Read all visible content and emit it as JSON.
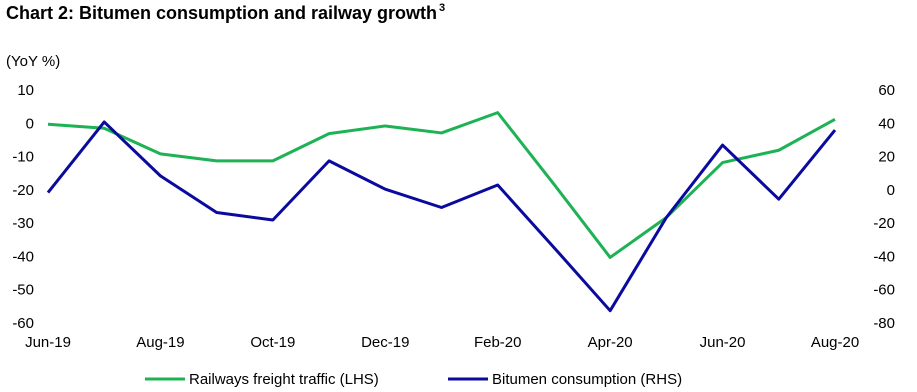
{
  "chart_data": {
    "type": "line",
    "title": "Chart 2: Bitumen consumption and railway growth",
    "title_superscript": "3",
    "y_label": "(YoY %)",
    "categories": [
      "Jun-19",
      null,
      "Aug-19",
      null,
      "Oct-19",
      null,
      "Dec-19",
      null,
      "Feb-20",
      null,
      "Apr-20",
      null,
      "Jun-20",
      null,
      "Aug-20"
    ],
    "series": [
      {
        "name": "Railways freight traffic (LHS)",
        "color": "#1db254",
        "axis": "y",
        "values": [
          0,
          -1.2,
          -8.9,
          -11,
          -11,
          -2.8,
          -0.5,
          -2.6,
          3.5,
          -18,
          -40,
          -28,
          -11.5,
          -7.8,
          1.5
        ]
      },
      {
        "name": "Bitumen consumption (RHS)",
        "color": "#0a0a9e",
        "axis": "y2",
        "values": [
          -1,
          41.4,
          9,
          -13,
          -17.5,
          18,
          1,
          -10,
          3.5,
          -34,
          -72,
          -16,
          27.5,
          -5,
          36.5
        ]
      }
    ],
    "ylim": [
      -60,
      10
    ],
    "yticks": [
      10,
      0,
      -10,
      -20,
      -30,
      -40,
      -50,
      -60
    ],
    "y2lim": [
      -80,
      60
    ],
    "y2ticks": [
      60,
      40,
      20,
      0,
      -20,
      -40,
      -60,
      -80
    ],
    "legend": "bottom"
  }
}
